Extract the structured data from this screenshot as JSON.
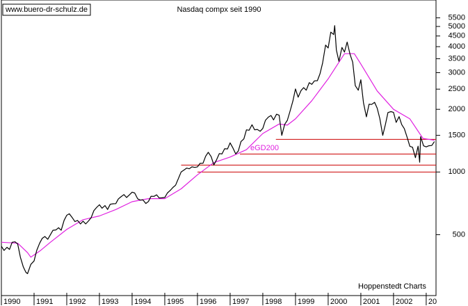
{
  "chart_data": {
    "type": "line",
    "title": "Nasdaq compx seit 1990",
    "watermark": "www.buero-dr-schulz.de",
    "source": "Hoppenstedt Charts",
    "log_scale": true,
    "ylim": [
      255,
      6700
    ],
    "yticks": [
      500,
      1000,
      1500,
      2000,
      2500,
      3000,
      3500,
      4000,
      4500,
      5000,
      5500
    ],
    "xlim": [
      1990,
      2003.3
    ],
    "xticks": [
      1990,
      1991,
      1992,
      1993,
      1994,
      1995,
      1996,
      1997,
      1998,
      1999,
      2000,
      2001,
      2002,
      {
        "value": 2003,
        "label": "20"
      }
    ],
    "series": [
      {
        "color": "#000000",
        "x": [
          1990.0,
          1990.08,
          1990.17,
          1990.25,
          1990.33,
          1990.42,
          1990.5,
          1990.58,
          1990.67,
          1990.75,
          1990.8,
          1990.9,
          1991.0,
          1991.08,
          1991.17,
          1991.25,
          1991.33,
          1991.42,
          1991.5,
          1991.58,
          1991.67,
          1991.75,
          1991.83,
          1991.92,
          1992.0,
          1992.08,
          1992.17,
          1992.25,
          1992.33,
          1992.42,
          1992.5,
          1992.58,
          1992.67,
          1992.75,
          1992.83,
          1992.92,
          1993.0,
          1993.08,
          1993.17,
          1993.25,
          1993.33,
          1993.42,
          1993.5,
          1993.58,
          1993.67,
          1993.75,
          1993.83,
          1993.92,
          1994.0,
          1994.08,
          1994.17,
          1994.25,
          1994.33,
          1994.42,
          1994.5,
          1994.58,
          1994.67,
          1994.75,
          1994.83,
          1994.92,
          1995.0,
          1995.08,
          1995.17,
          1995.25,
          1995.33,
          1995.42,
          1995.5,
          1995.58,
          1995.67,
          1995.75,
          1995.83,
          1995.92,
          1996.0,
          1996.08,
          1996.17,
          1996.25,
          1996.33,
          1996.42,
          1996.5,
          1996.58,
          1996.67,
          1996.75,
          1996.83,
          1996.92,
          1997.0,
          1997.08,
          1997.17,
          1997.25,
          1997.33,
          1997.42,
          1997.5,
          1997.58,
          1997.67,
          1997.75,
          1997.83,
          1997.92,
          1998.0,
          1998.08,
          1998.17,
          1998.25,
          1998.33,
          1998.42,
          1998.5,
          1998.58,
          1998.67,
          1998.75,
          1998.83,
          1998.92,
          1999.0,
          1999.08,
          1999.17,
          1999.25,
          1999.33,
          1999.42,
          1999.5,
          1999.58,
          1999.67,
          1999.75,
          1999.83,
          1999.92,
          2000.0,
          2000.08,
          2000.17,
          2000.2,
          2000.25,
          2000.33,
          2000.42,
          2000.5,
          2000.58,
          2000.67,
          2000.75,
          2000.83,
          2000.92,
          2001.0,
          2001.08,
          2001.17,
          2001.25,
          2001.33,
          2001.42,
          2001.5,
          2001.58,
          2001.67,
          2001.75,
          2001.83,
          2001.92,
          2002.0,
          2002.08,
          2002.17,
          2002.25,
          2002.33,
          2002.42,
          2002.5,
          2002.58,
          2002.67,
          2002.75,
          2002.8,
          2002.83,
          2002.92,
          2003.0,
          2003.08,
          2003.17,
          2003.25
        ],
        "values": [
          440,
          420,
          435,
          425,
          460,
          462,
          450,
          390,
          350,
          330,
          325,
          360,
          374,
          420,
          455,
          480,
          490,
          475,
          500,
          525,
          527,
          540,
          525,
          586,
          620,
          630,
          603,
          578,
          585,
          563,
          580,
          563,
          583,
          605,
          652,
          677,
          696,
          670,
          690,
          661,
          700,
          704,
          705,
          742,
          763,
          779,
          754,
          777,
          800,
          793,
          743,
          733,
          735,
          706,
          722,
          765,
          764,
          777,
          750,
          752,
          755,
          793,
          817,
          843,
          864,
          933,
          1001,
          1020,
          1044,
          1036,
          1059,
          1052,
          1059,
          1100,
          1101,
          1190,
          1243,
          1185,
          1081,
          1141,
          1226,
          1221,
          1293,
          1291,
          1380,
          1309,
          1222,
          1261,
          1400,
          1442,
          1594,
          1587,
          1686,
          1594,
          1601,
          1570,
          1619,
          1771,
          1835,
          1868,
          1779,
          1895,
          1873,
          1499,
          1694,
          1771,
          1950,
          2193,
          2505,
          2288,
          2461,
          2543,
          2471,
          2686,
          2638,
          2739,
          2746,
          2966,
          3336,
          4069,
          3940,
          4696,
          4573,
          5049,
          3860,
          3400,
          3966,
          3767,
          4206,
          3673,
          3370,
          2598,
          2471,
          2773,
          2152,
          1840,
          2116,
          2110,
          2161,
          2027,
          1805,
          1499,
          1690,
          1931,
          1950,
          1934,
          1731,
          1845,
          1688,
          1616,
          1463,
          1328,
          1315,
          1172,
          1330,
          1114,
          1478,
          1336,
          1320,
          1337,
          1341,
          1400
        ]
      },
      {
        "name": "eGD200",
        "color": "#e020e0",
        "x": [
          1990.0,
          1990.5,
          1990.8,
          1990.9,
          1991.2,
          1991.5,
          1992.0,
          1992.5,
          1993.0,
          1993.5,
          1994.0,
          1994.5,
          1995.0,
          1995.5,
          1996.0,
          1996.5,
          1997.0,
          1997.5,
          1998.0,
          1998.5,
          1998.75,
          1999.0,
          1999.5,
          2000.0,
          2000.5,
          2000.8,
          2001.0,
          2001.5,
          2002.0,
          2002.5,
          2002.9,
          2003.25
        ],
        "values": [
          460,
          455,
          410,
          390,
          420,
          460,
          530,
          590,
          615,
          660,
          720,
          745,
          745,
          830,
          970,
          1110,
          1180,
          1280,
          1530,
          1700,
          1680,
          1800,
          2200,
          2800,
          3700,
          3700,
          3300,
          2450,
          2000,
          1800,
          1450,
          1420
        ]
      }
    ],
    "reference_lines": {
      "color": "#cc0000",
      "lines": [
        {
          "y": 1435,
          "x0": 1998.4
        },
        {
          "y": 1220,
          "x0": 1997.3
        },
        {
          "y": 1080,
          "x0": 1995.5
        },
        {
          "y": 1000,
          "x0": 1996.0
        }
      ]
    }
  }
}
